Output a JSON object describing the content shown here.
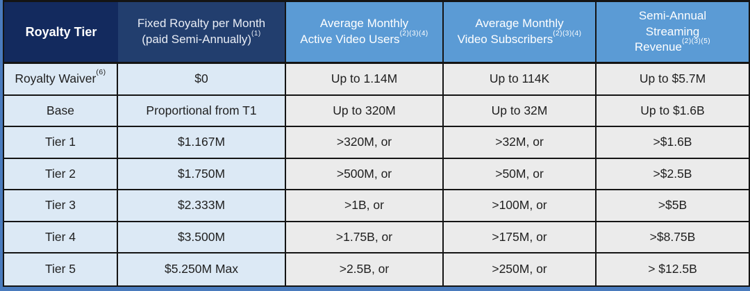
{
  "table": {
    "headers": [
      {
        "line1": "Royalty Tier"
      },
      {
        "line1": "Fixed Royalty per Month",
        "line2": "(paid Semi-Annually)",
        "sup": "(1)"
      },
      {
        "line1": "Average Monthly",
        "line2": "Active Video Users",
        "sup": "(2)(3)(4)"
      },
      {
        "line1": "Average Monthly",
        "line2": "Video Subscribers",
        "sup": "(2)(3)(4)"
      },
      {
        "line1": "Semi-Annual",
        "line2": "Streaming",
        "line3": "Revenue",
        "sup": "(2)(3)(5)"
      }
    ],
    "rows": [
      {
        "tier": "Royalty Waiver",
        "tier_sup": "(6)",
        "fixed": "$0",
        "users": "Up to 1.14M",
        "subs": "Up to 114K",
        "revenue": "Up to $5.7M"
      },
      {
        "tier": "Base",
        "tier_sup": "",
        "fixed": "Proportional from T1",
        "users": "Up to 320M",
        "subs": "Up to 32M",
        "revenue": "Up to $1.6B"
      },
      {
        "tier": "Tier 1",
        "tier_sup": "",
        "fixed": "$1.167M",
        "users": ">320M, or",
        "subs": ">32M, or",
        "revenue": ">$1.6B"
      },
      {
        "tier": "Tier 2",
        "tier_sup": "",
        "fixed": "$1.750M",
        "users": ">500M, or",
        "subs": ">50M, or",
        "revenue": ">$2.5B"
      },
      {
        "tier": "Tier 3",
        "tier_sup": "",
        "fixed": "$2.333M",
        "users": ">1B, or",
        "subs": ">100M, or",
        "revenue": ">$5B"
      },
      {
        "tier": "Tier 4",
        "tier_sup": "",
        "fixed": "$3.500M",
        "users": ">1.75B, or",
        "subs": ">175M, or",
        "revenue": ">$8.75B"
      },
      {
        "tier": "Tier 5",
        "tier_sup": "",
        "fixed": "$5.250M Max",
        "users": ">2.5B, or",
        "subs": ">250M, or",
        "revenue": "> $12.5B"
      }
    ]
  },
  "colors": {
    "header_tier_bg": "#132a5e",
    "header_fixed_bg": "#223e6e",
    "header_blue_bg": "#5b9bd5",
    "body_blue_bg": "#dce9f5",
    "body_gray_bg": "#ebebeb",
    "grid_border": "#141414",
    "outer_background": "#4a7bbd",
    "header_text": "#ffffff",
    "body_text": "#1f1f1f"
  },
  "chart_data": {
    "type": "table",
    "title": "Royalty Tier Table",
    "columns": [
      "Royalty Tier",
      "Fixed Royalty per Month (paid Semi-Annually)(1)",
      "Average Monthly Active Video Users(2)(3)(4)",
      "Average Monthly Video Subscribers(2)(3)(4)",
      "Semi-Annual Streaming Revenue(2)(3)(5)"
    ],
    "rows": [
      [
        "Royalty Waiver(6)",
        "$0",
        "Up to 1.14M",
        "Up to 114K",
        "Up to $5.7M"
      ],
      [
        "Base",
        "Proportional from T1",
        "Up to 320M",
        "Up to 32M",
        "Up to $1.6B"
      ],
      [
        "Tier 1",
        "$1.167M",
        ">320M, or",
        ">32M, or",
        ">$1.6B"
      ],
      [
        "Tier 2",
        "$1.750M",
        ">500M, or",
        ">50M, or",
        ">$2.5B"
      ],
      [
        "Tier 3",
        "$2.333M",
        ">1B, or",
        ">100M, or",
        ">$5B"
      ],
      [
        "Tier 4",
        "$3.500M",
        ">1.75B, or",
        ">175M, or",
        ">$8.75B"
      ],
      [
        "Tier 5",
        "$5.250M Max",
        ">2.5B, or",
        ">250M, or",
        "> $12.5B"
      ]
    ]
  }
}
